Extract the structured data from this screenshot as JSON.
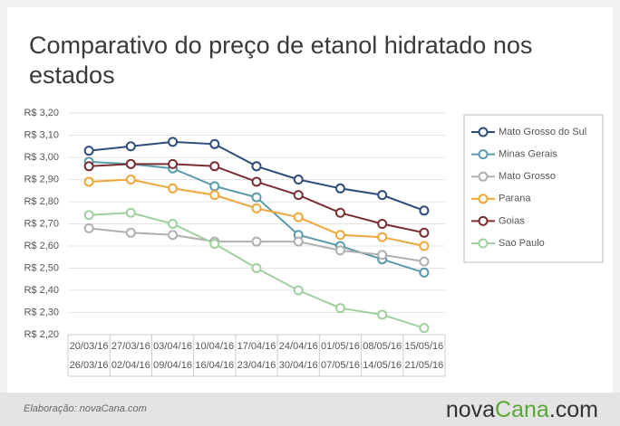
{
  "chart_data": {
    "type": "line",
    "title": "Comparativo do preço de etanol hidratado nos estados",
    "categories": [
      [
        "20/03/16",
        "26/03/16"
      ],
      [
        "27/03/16",
        "02/04/16"
      ],
      [
        "03/04/16",
        "09/04/16"
      ],
      [
        "10/04/16",
        "16/04/16"
      ],
      [
        "17/04/16",
        "23/04/16"
      ],
      [
        "24/04/16",
        "30/04/16"
      ],
      [
        "01/05/16",
        "07/05/16"
      ],
      [
        "08/05/16",
        "14/05/16"
      ],
      [
        "15/05/16",
        "21/05/16"
      ]
    ],
    "series": [
      {
        "name": "Mato Grosso do Sul",
        "color": "#2e4d7b",
        "values": [
          3.03,
          3.05,
          3.07,
          3.06,
          2.96,
          2.9,
          2.86,
          2.83,
          2.76
        ]
      },
      {
        "name": "Minas Gerais",
        "color": "#5a9bab",
        "values": [
          2.98,
          2.97,
          2.95,
          2.87,
          2.82,
          2.65,
          2.6,
          2.54,
          2.48
        ]
      },
      {
        "name": "Mato Grosso",
        "color": "#b0b0b0",
        "values": [
          2.68,
          2.66,
          2.65,
          2.62,
          2.62,
          2.62,
          2.58,
          2.56,
          2.53
        ]
      },
      {
        "name": "Parana",
        "color": "#f0a638",
        "values": [
          2.89,
          2.9,
          2.86,
          2.83,
          2.77,
          2.73,
          2.65,
          2.64,
          2.6
        ]
      },
      {
        "name": "Goias",
        "color": "#7a2e32",
        "values": [
          2.96,
          2.97,
          2.97,
          2.96,
          2.89,
          2.83,
          2.75,
          2.7,
          2.66
        ]
      },
      {
        "name": "Sao Paulo",
        "color": "#9fd09f",
        "values": [
          2.74,
          2.75,
          2.7,
          2.61,
          2.5,
          2.4,
          2.32,
          2.29,
          2.23
        ]
      }
    ],
    "ylim": [
      2.2,
      3.2
    ],
    "yticks": [
      {
        "value": 2.2,
        "label": "R$ 2,20"
      },
      {
        "value": 2.3,
        "label": "R$ 2,30"
      },
      {
        "value": 2.4,
        "label": "R$ 2,40"
      },
      {
        "value": 2.5,
        "label": "R$ 2,50"
      },
      {
        "value": 2.6,
        "label": "R$ 2,60"
      },
      {
        "value": 2.7,
        "label": "R$ 2,70"
      },
      {
        "value": 2.8,
        "label": "R$ 2,80"
      },
      {
        "value": 2.9,
        "label": "R$ 2,90"
      },
      {
        "value": 3.0,
        "label": "R$ 3,00"
      },
      {
        "value": 3.1,
        "label": "R$ 3,10"
      },
      {
        "value": 3.2,
        "label": "R$ 3,20"
      }
    ],
    "grid": true,
    "legend": "right",
    "source": "Elaboração: novaCana.com",
    "logo": [
      "nova",
      "Cana",
      ".com"
    ]
  }
}
